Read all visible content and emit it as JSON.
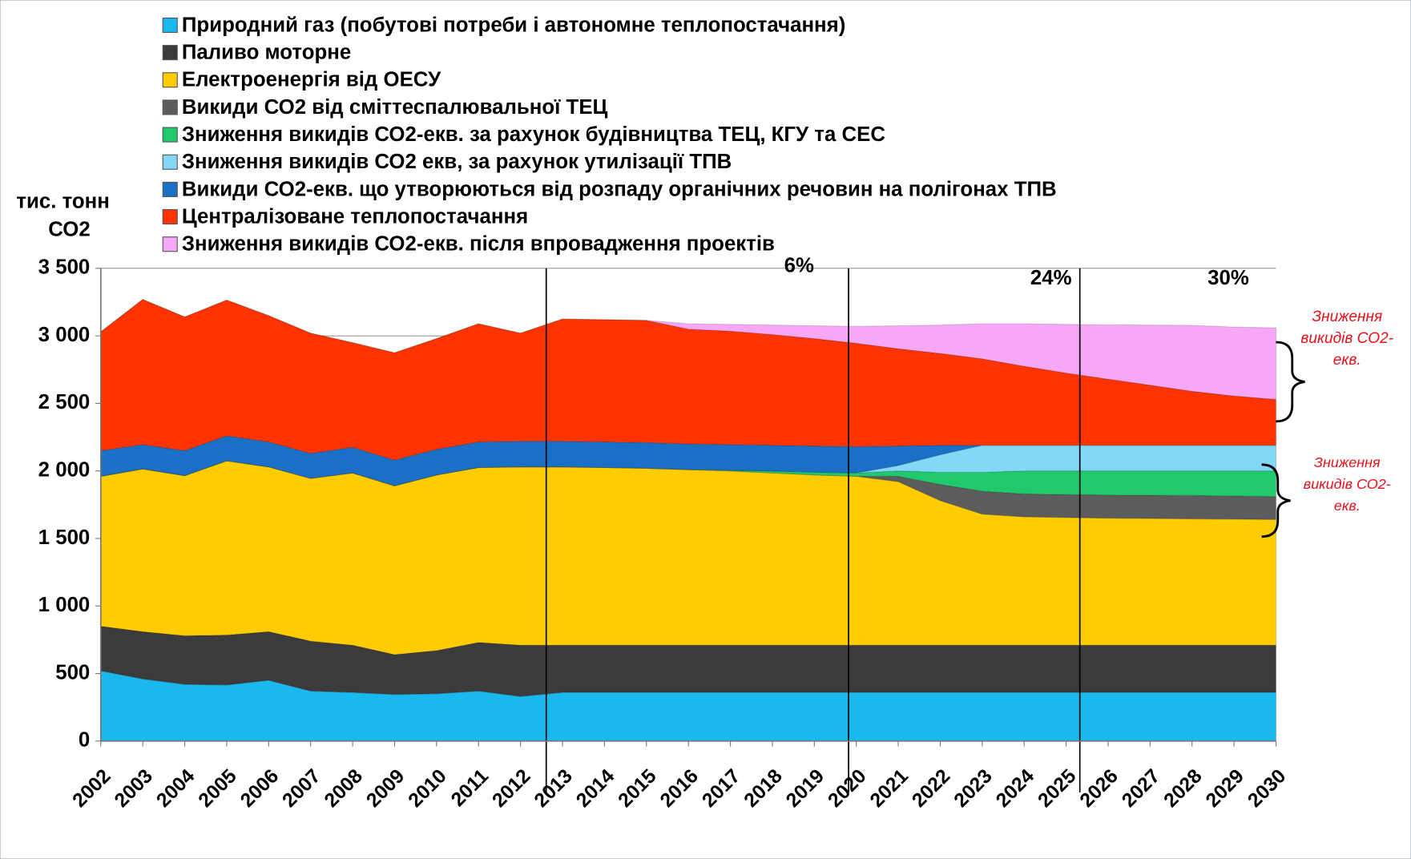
{
  "chart_data": {
    "type": "stacked_area",
    "y_label": [
      "тис. тонн",
      "СО2"
    ],
    "categories": [
      "2002",
      "2003",
      "2004",
      "2005",
      "2006",
      "2007",
      "2008",
      "2009",
      "2010",
      "2011",
      "2012",
      "2013",
      "2014",
      "2015",
      "2016",
      "2017",
      "2018",
      "2019",
      "2020",
      "2021",
      "2022",
      "2023",
      "2024",
      "2025",
      "2026",
      "2027",
      "2028",
      "2029",
      "2030"
    ],
    "series": [
      {
        "name": "Природний газ (побутові потреби і автономне теплопостачання)",
        "color": "#19b8ee",
        "values": [
          520,
          460,
          420,
          415,
          450,
          370,
          360,
          345,
          350,
          370,
          330,
          360,
          360,
          360,
          360,
          360,
          360,
          360,
          360,
          360,
          360,
          360,
          360,
          360,
          360,
          360,
          360,
          360,
          360
        ]
      },
      {
        "name": "Паливо моторне",
        "color": "#3b3b3b",
        "values": [
          330,
          350,
          360,
          370,
          360,
          370,
          350,
          295,
          320,
          360,
          380,
          350,
          350,
          350,
          350,
          350,
          350,
          350,
          350,
          350,
          350,
          350,
          350,
          350,
          350,
          350,
          350,
          350,
          350
        ]
      },
      {
        "name": "Електроенергія від ОЕСУ",
        "color": "#ffcc00",
        "values": [
          1110,
          1205,
          1185,
          1290,
          1220,
          1205,
          1275,
          1250,
          1300,
          1295,
          1320,
          1320,
          1315,
          1310,
          1300,
          1290,
          1275,
          1260,
          1250,
          1210,
          1070,
          970,
          950,
          945,
          940,
          938,
          935,
          933,
          930
        ]
      },
      {
        "name": "Викиди СО2 від сміттеспалювальної ТЕЦ",
        "color": "#5c5c5c",
        "values": [
          0,
          0,
          0,
          0,
          0,
          0,
          0,
          0,
          0,
          0,
          0,
          0,
          0,
          0,
          0,
          0,
          0,
          0,
          0,
          40,
          120,
          170,
          170,
          170,
          172,
          172,
          173,
          172,
          170
        ]
      },
      {
        "name": "Зниження викидів СО2-екв. за рахунок будівництва ТЕЦ, КГУ та СЕС",
        "color": "#1fc96c",
        "values": [
          0,
          0,
          0,
          0,
          0,
          0,
          0,
          0,
          0,
          0,
          0,
          0,
          0,
          0,
          0,
          5,
          15,
          20,
          25,
          40,
          90,
          140,
          170,
          175,
          178,
          180,
          182,
          185,
          190
        ]
      },
      {
        "name": "Зниження викидів СО2 екв, за рахунок утилізації ТПВ",
        "color": "#82d8f7",
        "values": [
          0,
          0,
          0,
          0,
          0,
          0,
          0,
          0,
          0,
          0,
          0,
          0,
          0,
          0,
          0,
          0,
          0,
          0,
          0,
          40,
          130,
          200,
          190,
          190,
          190,
          190,
          190,
          190,
          190
        ]
      },
      {
        "name": "Викиди СО2-екв. що утворюються від розпаду органічних речовин на полігонах ТПВ",
        "color": "#1a6fc6",
        "values": [
          190,
          180,
          185,
          185,
          185,
          185,
          190,
          190,
          190,
          190,
          190,
          190,
          190,
          190,
          190,
          190,
          190,
          195,
          195,
          145,
          70,
          0,
          0,
          0,
          0,
          0,
          0,
          0,
          0
        ]
      },
      {
        "name": "Централізоване теплопостачання",
        "color": "#ff3300",
        "values": [
          880,
          1075,
          990,
          1005,
          935,
          890,
          775,
          795,
          820,
          875,
          800,
          905,
          905,
          905,
          850,
          840,
          820,
          795,
          765,
          720,
          680,
          640,
          585,
          535,
          490,
          445,
          400,
          365,
          340
        ]
      },
      {
        "name": "Зниження викидів СО2-екв. після впровадження проектів",
        "color": "#f6a8f6",
        "values": [
          0,
          0,
          0,
          0,
          0,
          0,
          0,
          0,
          0,
          0,
          0,
          0,
          0,
          0,
          40,
          50,
          70,
          95,
          125,
          170,
          210,
          260,
          315,
          360,
          402,
          445,
          488,
          510,
          530
        ]
      }
    ],
    "ylim": [
      0,
      3500
    ],
    "yticks": [
      {
        "value": 0,
        "label": "0"
      },
      {
        "value": 500,
        "label": "500"
      },
      {
        "value": 1000,
        "label": "1 000"
      },
      {
        "value": 1500,
        "label": "1 500"
      },
      {
        "value": 2000,
        "label": "2 000"
      },
      {
        "value": 2500,
        "label": "2 500"
      },
      {
        "value": 3000,
        "label": "3 000"
      },
      {
        "value": 3500,
        "label": "3 500"
      }
    ],
    "annotations": [
      "6%",
      "24%",
      "30%",
      "Зниження викидів СО2-екв.",
      "Зниження викидів СО2-екв."
    ]
  }
}
